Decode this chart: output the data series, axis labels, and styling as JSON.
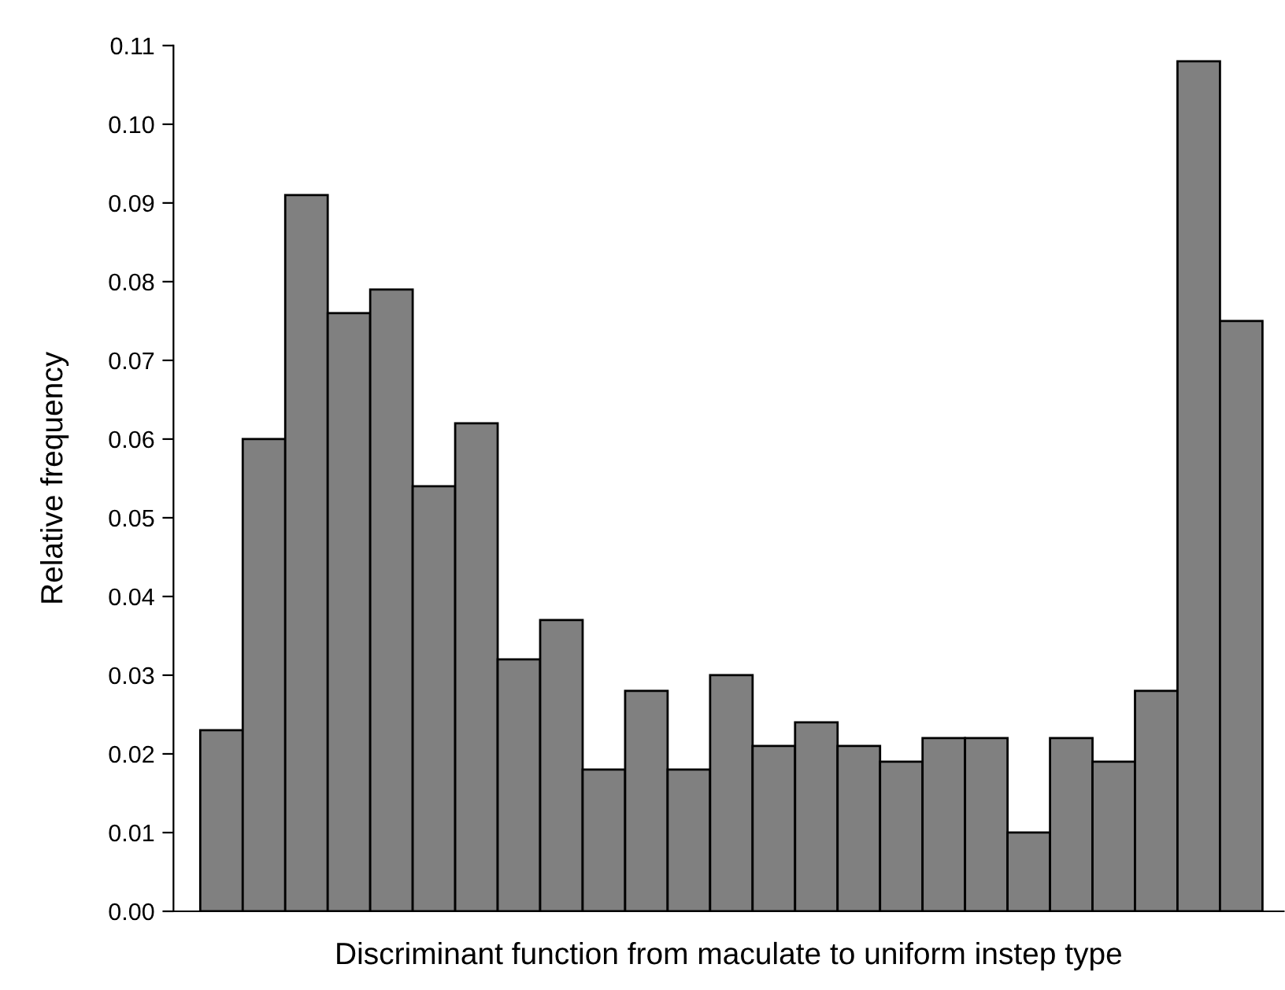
{
  "chart_data": {
    "type": "bar",
    "xlabel": "Discriminant function from maculate to uniform instep type",
    "ylabel": "Relative frequency",
    "categories": [
      null,
      null,
      null,
      null,
      null,
      null,
      null,
      null,
      null,
      null,
      null,
      null,
      null,
      null,
      null,
      null,
      null,
      null,
      null,
      null,
      null,
      null,
      null,
      null,
      null
    ],
    "values": [
      0.023,
      0.06,
      0.091,
      0.076,
      0.079,
      0.054,
      0.062,
      0.032,
      0.037,
      0.018,
      0.028,
      0.018,
      0.03,
      0.021,
      0.024,
      0.021,
      0.019,
      0.022,
      0.022,
      0.01,
      0.022,
      0.019,
      0.028,
      0.108,
      0.075
    ],
    "color": "#808080",
    "ylim": [
      0,
      0.11
    ],
    "yticks": [
      {
        "value": 0,
        "label": "0.00"
      },
      {
        "value": 0.01,
        "label": "0.01"
      },
      {
        "value": 0.02,
        "label": "0.02"
      },
      {
        "value": 0.03,
        "label": "0.03"
      },
      {
        "value": 0.04,
        "label": "0.04"
      },
      {
        "value": 0.05,
        "label": "0.05"
      },
      {
        "value": 0.06,
        "label": "0.06"
      },
      {
        "value": 0.07,
        "label": "0.07"
      },
      {
        "value": 0.08,
        "label": "0.08"
      },
      {
        "value": 0.09,
        "label": "0.09"
      },
      {
        "value": 0.1,
        "label": "0.10"
      },
      {
        "value": 0.11,
        "label": "0.11"
      }
    ],
    "tick_labels": "y",
    "grid": false
  }
}
